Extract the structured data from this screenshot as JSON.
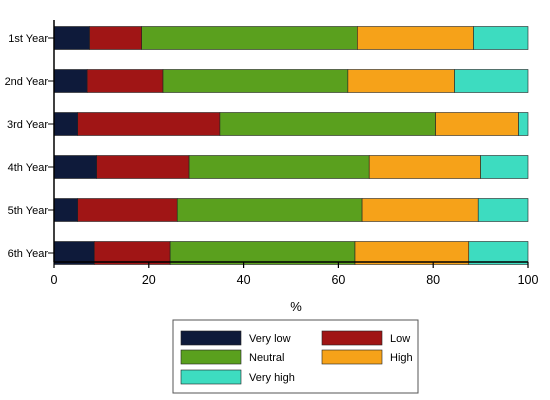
{
  "chart_data": {
    "type": "bar",
    "orientation": "horizontal",
    "stacked": true,
    "categories": [
      "1st Year",
      "2nd Year",
      "3rd Year",
      "4th Year",
      "5th Year",
      "6th Year"
    ],
    "series": [
      {
        "name": "Very low",
        "color": "#0e1a3a",
        "values": [
          7.5,
          7,
          5,
          9,
          5,
          8.5
        ]
      },
      {
        "name": "Low",
        "color": "#a01515",
        "values": [
          11,
          16,
          30,
          19.5,
          21,
          16
        ]
      },
      {
        "name": "Neutral",
        "color": "#5aa01e",
        "values": [
          45.5,
          39,
          45.5,
          38,
          39,
          39
        ]
      },
      {
        "name": "High",
        "color": "#f6a219",
        "values": [
          24.5,
          22.5,
          17.5,
          23.5,
          24.5,
          24
        ]
      },
      {
        "name": "Very high",
        "color": "#3ddcc0",
        "values": [
          11.5,
          15.5,
          2,
          10,
          10.5,
          12.5
        ]
      }
    ],
    "xlabel": "%",
    "ylabel": "",
    "xlim": [
      0,
      100
    ],
    "xticks": [
      0,
      20,
      40,
      60,
      80,
      100
    ],
    "grid": false,
    "legend_position": "bottom"
  }
}
